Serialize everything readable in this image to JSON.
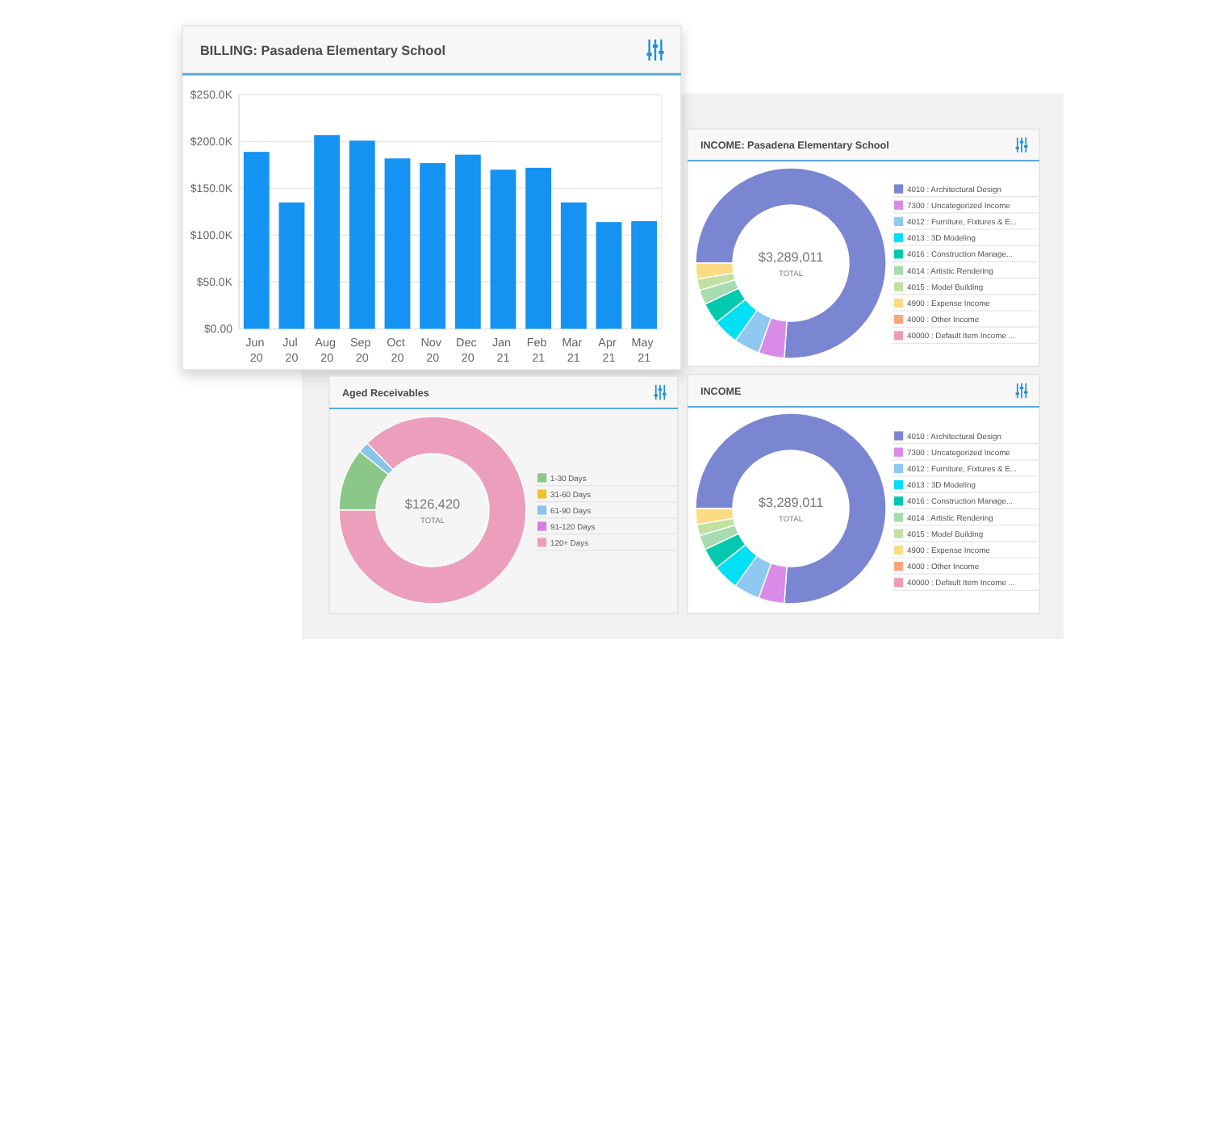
{
  "chart_data": [
    {
      "type": "bar",
      "title": "BILLING: Pasadena Elementary School",
      "categories": [
        "Jun 20",
        "Jul 20",
        "Aug 20",
        "Sep 20",
        "Oct 20",
        "Nov 20",
        "Dec 20",
        "Jan 21",
        "Feb 21",
        "Mar 21",
        "Apr 21",
        "May 21"
      ],
      "values": [
        189000,
        135000,
        207000,
        201000,
        182000,
        177000,
        186000,
        170000,
        172000,
        135000,
        114000,
        115000
      ],
      "color": "#1593f2",
      "ylim": [
        0,
        250000
      ],
      "yticks": [
        {
          "value": 0,
          "label": "$0.00"
        },
        {
          "value": 50000,
          "label": "$50.0K"
        },
        {
          "value": 100000,
          "label": "$100.0K"
        },
        {
          "value": 150000,
          "label": "$150.0K"
        },
        {
          "value": 200000,
          "label": "$200.0K"
        },
        {
          "value": 250000,
          "label": "$250.0K"
        }
      ],
      "grid": "y"
    },
    {
      "type": "donut",
      "title": "INCOME: Pasadena Elementary School",
      "categories": [
        "4010 : Architectural Design",
        "7300 : Uncategorized Income",
        "4012 : Furniture, Fixtures & E...",
        "4013 : 3D Modeling",
        "4016 : Construction Manage...",
        "4014 : Artistic Rendering",
        "4015 : Model Building",
        "4900 : Expense Income",
        "4000 : Other Income",
        "40000 : Default Item Income ..."
      ],
      "values": [
        76.1,
        4.4,
        4.4,
        4.4,
        3.6,
        2.5,
        1.9,
        2.7,
        0,
        0
      ],
      "colors": [
        "#7b86d3",
        "#d98be8",
        "#8fc9f2",
        "#00e0f5",
        "#00c9ad",
        "#a8dcb0",
        "#c2e0a0",
        "#fbdc85",
        "#f9a57c",
        "#ee9ab8"
      ],
      "legend": "right",
      "annotations": [
        "$3,289,011",
        "TOTAL"
      ]
    },
    {
      "type": "donut",
      "title": "Aged Receivables",
      "categories": [
        "1-30 Days",
        "31-60 Days",
        "61-90 Days",
        "91-120 Days",
        "120+ Days"
      ],
      "values": [
        10.8,
        0,
        1.9,
        0,
        87.3
      ],
      "colors": [
        "#8cc78a",
        "#f2c12e",
        "#8bc4ea",
        "#d77fe0",
        "#eb9fbd"
      ],
      "legend": "right",
      "annotations": [
        "$126,420",
        "TOTAL"
      ]
    },
    {
      "type": "donut",
      "title": "INCOME",
      "categories": [
        "4010 : Architectural Design",
        "7300 : Uncategorized Income",
        "4012 : Furniture, Fixtures & E...",
        "4013 : 3D Modeling",
        "4016 : Construction Manage...",
        "4014 : Artistic Rendering",
        "4015 : Model Building",
        "4900 : Expense Income",
        "4000 : Other Income",
        "40000 : Default Item Income ..."
      ],
      "values": [
        76.1,
        4.4,
        4.4,
        4.4,
        3.6,
        2.5,
        1.9,
        2.7,
        0,
        0
      ],
      "colors": [
        "#7b86d3",
        "#d98be8",
        "#8fc9f2",
        "#00e0f5",
        "#00c9ad",
        "#a8dcb0",
        "#c2e0a0",
        "#fbdc85",
        "#f9a57c",
        "#ee9ab8"
      ],
      "legend": "right",
      "annotations": [
        "$3,289,011",
        "TOTAL"
      ]
    }
  ]
}
